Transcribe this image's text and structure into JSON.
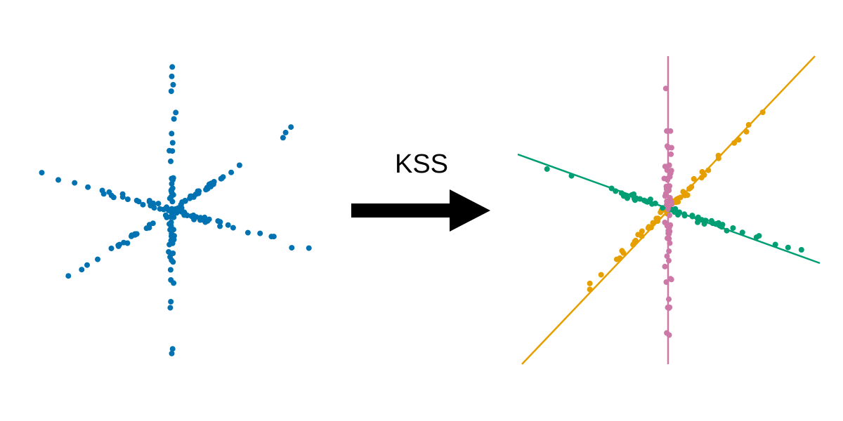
{
  "arrow_label": "KSS",
  "arrow_icon": "right-arrow-icon",
  "colors": {
    "input_points": "#0072b2",
    "subspace_1": "#e69f00",
    "subspace_2": "#009e73",
    "subspace_3": "#cc79a7",
    "arrow": "#000000",
    "background": "#ffffff"
  },
  "panels": [
    {
      "id": "input-scatter",
      "clusters": 1,
      "point_count": 180
    },
    {
      "id": "clustered-scatter",
      "clusters": 3,
      "fitted_lines": 3,
      "points_per_cluster": 60
    }
  ]
}
